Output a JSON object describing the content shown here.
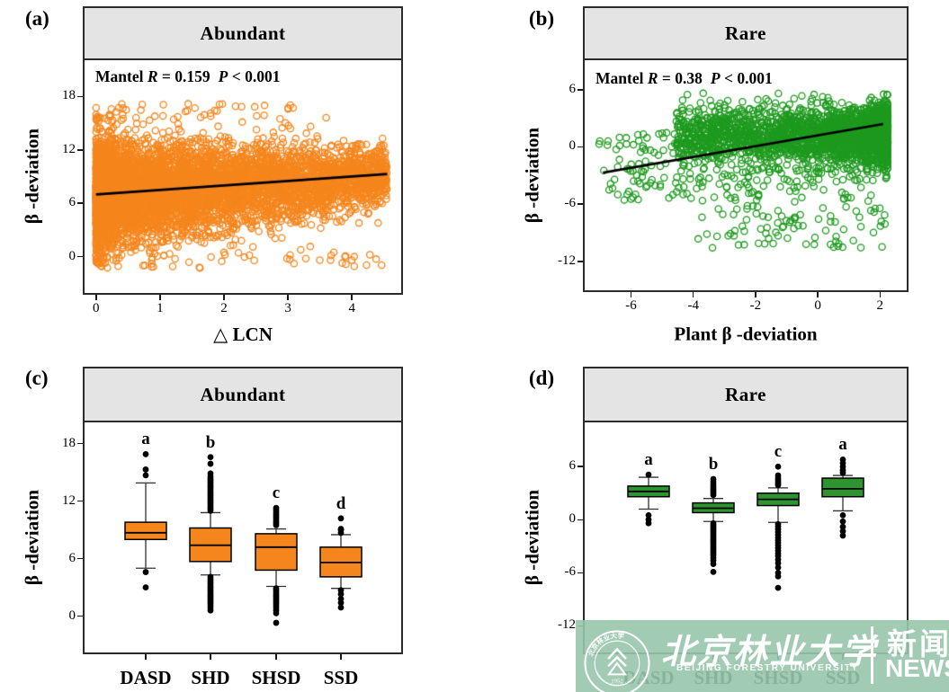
{
  "chart_data": [
    {
      "id": "a",
      "type": "scatter",
      "panel_label": "(a)",
      "title": "Abundant",
      "annotation": {
        "prefix": "Mantel ",
        "stat1_label": "R",
        "stat1_rest": " = 0.159",
        "stat2_label": "P",
        "stat2_rest": " < 0.001"
      },
      "xlabel": "△ LCN",
      "ylabel": "β -deviation",
      "x_ticks": [
        0,
        1,
        2,
        3,
        4
      ],
      "y_ticks": [
        0,
        6,
        12,
        18
      ],
      "x_range": [
        -0.18,
        4.77
      ],
      "y_range": [
        -4.08,
        22.09
      ],
      "point_color": "#F5861D",
      "regression": {
        "x1": 0.0,
        "y1": 7.0,
        "x2": 4.55,
        "y2": 9.3
      },
      "cloud": {
        "kind": "wedge",
        "n": 6000,
        "seed": 7,
        "x_max": 4.55,
        "x_skew": 1.9,
        "y_base": 7.0,
        "y_slope": 0.45,
        "sd_base": 3.05,
        "sd_slope": -0.32,
        "y_clip": [
          -1.2,
          13.4
        ],
        "high_outlier_frac": 0.018,
        "high_outlier_range": [
          13.2,
          17.2
        ],
        "high_outlier_xmax": 3.6,
        "low_outlier_frac": 0.005,
        "low_outlier_range": [
          -1.3,
          0.5
        ]
      }
    },
    {
      "id": "b",
      "type": "scatter",
      "panel_label": "(b)",
      "title": "Rare",
      "annotation": {
        "prefix": "Mantel ",
        "stat1_label": "R",
        "stat1_rest": " = 0.38",
        "stat2_label": "P",
        "stat2_rest": " < 0.001"
      },
      "xlabel": "Plant β -deviation",
      "ylabel": "β -deviation",
      "x_ticks": [
        -6,
        -4,
        -2,
        0,
        2
      ],
      "y_ticks": [
        -12,
        -6,
        0,
        6
      ],
      "x_range": [
        -7.49,
        2.86
      ],
      "y_range": [
        -15.03,
        9.09
      ],
      "point_color": "#1E9A1E",
      "regression": {
        "x1": -6.9,
        "y1": -2.7,
        "x2": 2.1,
        "y2": 2.4
      },
      "cloud": {
        "kind": "blob",
        "n": 3000,
        "seed": 11,
        "main_frac": 0.91,
        "x_peak": 2.25,
        "x_span": 6.8,
        "x_skew": 2.3,
        "x_min_main": -4.6,
        "y_mean": 1.25,
        "y_sd": 1.5,
        "y_clip_high": 5.7,
        "y_clip_low": -3.4,
        "low_frac": 0.055,
        "low_x": [
          -3.9,
          2.2
        ],
        "low_y_top": -2.2,
        "low_y_depth": 8.4,
        "left_frac": 0.035,
        "left_x": [
          -7.05,
          -3.6
        ],
        "left_y": [
          -5.6,
          1.6
        ]
      }
    },
    {
      "id": "c",
      "type": "box",
      "panel_label": "(c)",
      "title": "Abundant",
      "ylabel": "β -deviation",
      "y_ticks": [
        0,
        6,
        12,
        18
      ],
      "y_range": [
        -3.79,
        20.22
      ],
      "box_color": "#F5861D",
      "categories": [
        "DASD",
        "SHD",
        "SHSD",
        "SSD"
      ],
      "boxes": [
        {
          "category": "DASD",
          "letter": "a",
          "whisker_low": 5.0,
          "q1": 8.0,
          "median": 8.7,
          "q3": 9.8,
          "whisker_high": 13.9,
          "outliers_low": [
            4.6,
            3.0
          ],
          "outliers_high": [
            14.7,
            15.3,
            16.9
          ]
        },
        {
          "category": "SHD",
          "letter": "b",
          "whisker_low": 4.3,
          "q1": 5.7,
          "median": 7.4,
          "q3": 9.2,
          "whisker_high": 10.8,
          "outliers_low": [
            4.1,
            3.9,
            3.7,
            3.5,
            3.3,
            3.1,
            2.9,
            2.7,
            2.5,
            2.3,
            2.1,
            1.9,
            1.7,
            1.5,
            1.3,
            1.1,
            0.9,
            0.6
          ],
          "outliers_high": [
            11.0,
            11.2,
            11.4,
            11.6,
            11.8,
            12.0,
            12.2,
            12.4,
            12.6,
            12.8,
            13.0,
            13.2,
            13.4,
            13.6,
            13.8,
            14.0,
            14.2,
            14.4,
            14.6,
            14.9,
            15.9,
            16.6
          ]
        },
        {
          "category": "SHSD",
          "letter": "c",
          "whisker_low": 3.1,
          "q1": 4.8,
          "median": 7.2,
          "q3": 8.6,
          "whisker_high": 9.1,
          "outliers_low": [
            2.9,
            2.7,
            2.5,
            2.3,
            2.1,
            1.9,
            1.7,
            1.5,
            1.3,
            1.1,
            0.9,
            0.6,
            0.3,
            -0.7
          ],
          "outliers_high": [
            9.5,
            9.7,
            9.9,
            10.1,
            10.3,
            10.5,
            10.7,
            10.9,
            11.1,
            11.3
          ]
        },
        {
          "category": "SSD",
          "letter": "d",
          "whisker_low": 2.9,
          "q1": 4.1,
          "median": 5.6,
          "q3": 7.2,
          "whisker_high": 8.5,
          "outliers_low": [
            2.7,
            2.3,
            1.8,
            1.4,
            0.9
          ],
          "outliers_high": [
            8.7,
            9.0,
            9.1,
            10.2
          ]
        }
      ]
    },
    {
      "id": "d",
      "type": "box",
      "panel_label": "(d)",
      "title": "Rare",
      "ylabel": "β -deviation",
      "y_ticks": [
        -12,
        -6,
        0,
        6
      ],
      "y_range": [
        -15.0,
        11.0
      ],
      "box_color": "#2E9430",
      "categories": [
        "DASD",
        "SHD",
        "SHSD",
        "SSD"
      ],
      "boxes": [
        {
          "category": "DASD",
          "letter": "a",
          "whisker_low": 1.2,
          "q1": 2.6,
          "median": 3.2,
          "q3": 3.8,
          "whisker_high": 4.8,
          "outliers_low": [
            0.5,
            0.0,
            -0.4
          ],
          "outliers_high": [
            5.1
          ]
        },
        {
          "category": "SHD",
          "letter": "b",
          "whisker_low": -0.2,
          "q1": 0.8,
          "median": 1.3,
          "q3": 1.9,
          "whisker_high": 2.4,
          "outliers_low": [
            -0.4,
            -0.6,
            -0.8,
            -1.0,
            -1.2,
            -1.4,
            -1.6,
            -1.8,
            -2.0,
            -2.2,
            -2.4,
            -2.6,
            -2.8,
            -3.0,
            -3.2,
            -3.4,
            -3.6,
            -3.8,
            -4.0,
            -4.3,
            -4.6,
            -5.0,
            -5.9
          ],
          "outliers_high": [
            2.8,
            3.0,
            3.2,
            3.4,
            3.6,
            3.8,
            4.0,
            4.3,
            4.6
          ]
        },
        {
          "category": "SHSD",
          "letter": "c",
          "whisker_low": -0.3,
          "q1": 1.6,
          "median": 2.3,
          "q3": 3.0,
          "whisker_high": 3.6,
          "outliers_low": [
            -0.5,
            -0.8,
            -1.1,
            -1.4,
            -1.7,
            -2.0,
            -2.3,
            -2.6,
            -2.9,
            -3.2,
            -3.5,
            -3.8,
            -4.1,
            -4.5,
            -4.9,
            -5.4,
            -6.0,
            -6.4,
            -7.7
          ],
          "outliers_high": [
            3.9,
            4.1,
            4.3,
            4.5,
            4.7,
            5.0,
            6.0
          ]
        },
        {
          "category": "SSD",
          "letter": "a",
          "whisker_low": 1.0,
          "q1": 2.6,
          "median": 3.5,
          "q3": 4.7,
          "whisker_high": 5.0,
          "outliers_low": [
            0.5,
            -0.2,
            -0.8,
            -1.3,
            -1.8
          ],
          "outliers_high": [
            5.3,
            5.6,
            6.0,
            6.4,
            6.8
          ]
        }
      ]
    }
  ],
  "watermark": {
    "band_color": "#97C5AB",
    "university_cn": "北京林业大学",
    "university_en": "BEIJING FORESTRY UNIVERSITY",
    "news_cn": "新闻",
    "news_en": "NEWS",
    "year": "1952"
  }
}
